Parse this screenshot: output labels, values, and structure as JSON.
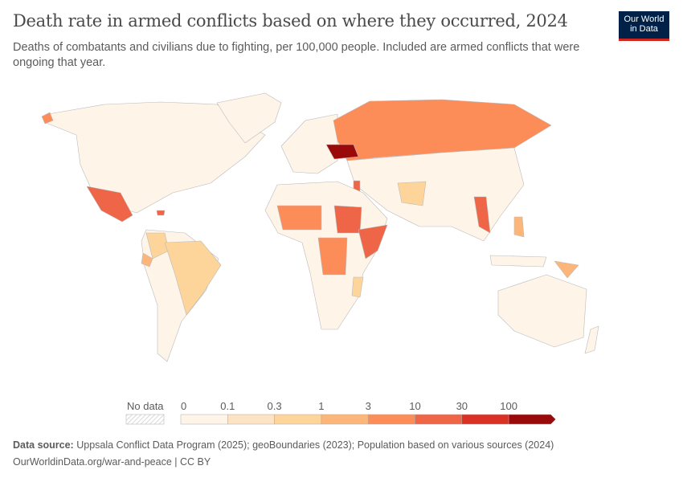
{
  "title": "Death rate in armed conflicts based on where they occurred, 2024",
  "subtitle": "Deaths of combatants and civilians due to fighting, per 100,000 people. Included are armed conflicts that were ongoing that year.",
  "logo": {
    "line1": "Our World",
    "line2": "in Data"
  },
  "legend": {
    "no_data_label": "No data",
    "ticks": [
      "0",
      "0.1",
      "0.3",
      "1",
      "3",
      "10",
      "30",
      "100"
    ],
    "colors": [
      "#fef4e8",
      "#fde3c4",
      "#fdd49a",
      "#fcb679",
      "#fc8d59",
      "#ee6547",
      "#d93124",
      "#9b0a0a"
    ]
  },
  "footer": {
    "source_label": "Data source:",
    "source_text": "Uppsala Conflict Data Program (2025); geoBoundaries (2023); Population based on various sources (2024)",
    "url": "OurWorldinData.org/war-and-peace | CC BY"
  }
}
